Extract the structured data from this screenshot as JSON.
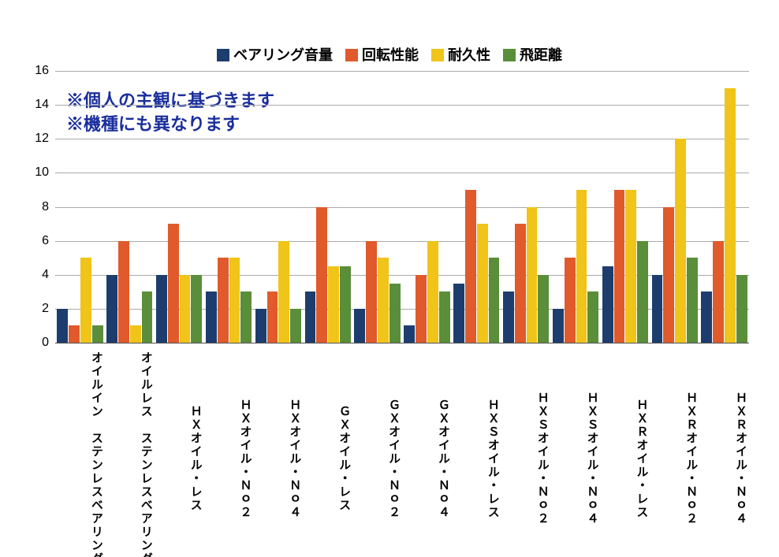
{
  "chart": {
    "type": "bar",
    "background": "#ffffff",
    "ymax": 16,
    "ytick_step": 2,
    "yticks": [
      0,
      2,
      4,
      6,
      8,
      10,
      12,
      14,
      16
    ],
    "grid_color": "#aaaaaa",
    "axis_color": "#555555",
    "tick_fontsize": 16,
    "label_fontsize": 15,
    "legend_fontsize": 18,
    "annotation_fontsize": 22,
    "annotation_color": "#1a2e9c",
    "series": [
      {
        "name": "ベアリング音量",
        "color": "#1d3d6e"
      },
      {
        "name": "回転性能",
        "color": "#e05a2b"
      },
      {
        "name": "耐久性",
        "color": "#f0c419"
      },
      {
        "name": "飛距離",
        "color": "#5a8e3a"
      }
    ],
    "categories": [
      "オイルイン　ステンレスベアリング",
      "オイルレス　ステンレスベアリング",
      "ＨＸオイル・レス",
      "ＨＸオイル・Ｎｏ２",
      "ＨＸオイル・Ｎｏ４",
      "ＧＸオイル・レス",
      "ＧＸオイル・Ｎｏ２",
      "ＧＸオイル・Ｎｏ４",
      "ＨＸＳオイル・レス",
      "ＨＸＳオイル・Ｎｏ２",
      "ＨＸＳオイル・Ｎｏ４",
      "ＨＸＲオイル・レス",
      "ＨＸＲオイル・Ｎｏ２",
      "ＨＸＲオイル・Ｎｏ４"
    ],
    "data": [
      [
        2,
        1,
        5,
        1
      ],
      [
        4,
        6,
        1,
        3
      ],
      [
        4,
        7,
        4,
        4
      ],
      [
        3,
        5,
        5,
        3
      ],
      [
        2,
        3,
        6,
        2
      ],
      [
        3,
        8,
        4.5,
        4.5
      ],
      [
        2,
        6,
        5,
        3.5
      ],
      [
        1,
        4,
        6,
        3
      ],
      [
        3.5,
        9,
        7,
        5
      ],
      [
        3,
        7,
        8,
        4
      ],
      [
        2,
        5,
        9,
        3
      ],
      [
        4.5,
        9,
        9,
        6
      ],
      [
        4,
        8,
        12,
        5
      ],
      [
        3,
        6,
        15,
        4
      ]
    ],
    "annotations": [
      "※個人の主観に基づきます",
      "※機種にも異なります"
    ]
  }
}
